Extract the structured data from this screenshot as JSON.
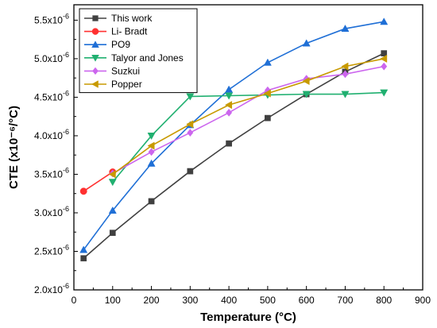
{
  "chart_data": {
    "type": "line",
    "xlabel": "Temperature (°C)",
    "ylabel": "CTE (x10⁻⁶/°C)",
    "xlim": [
      0,
      900
    ],
    "ylim": [
      2.0,
      5.7
    ],
    "x_ticks": [
      0,
      100,
      200,
      300,
      400,
      500,
      600,
      700,
      800,
      900
    ],
    "y_ticks": [
      2.0,
      2.5,
      3.0,
      3.5,
      4.0,
      4.5,
      5.0,
      5.5
    ],
    "y_tick_labels": [
      {
        "base": "2.0x10",
        "exp": "-6"
      },
      {
        "base": "2.5x10",
        "exp": "-6"
      },
      {
        "base": "3.0x10",
        "exp": "-6"
      },
      {
        "base": "3.5x10",
        "exp": "-6"
      },
      {
        "base": "4.0x10",
        "exp": "-6"
      },
      {
        "base": "4.5x10",
        "exp": "-6"
      },
      {
        "base": "5.0x10",
        "exp": "-6"
      },
      {
        "base": "5.5x10",
        "exp": "-6"
      }
    ],
    "legend_position": "top-left",
    "series": [
      {
        "name": "This work",
        "color": "#404040",
        "marker": "square",
        "x": [
          25,
          100,
          200,
          300,
          400,
          500,
          600,
          700,
          800
        ],
        "y": [
          2.41,
          2.74,
          3.15,
          3.54,
          3.9,
          4.23,
          4.54,
          4.83,
          5.07
        ]
      },
      {
        "name": "Li- Bradt",
        "color": "#ff3030",
        "marker": "circle",
        "x": [
          25,
          100
        ],
        "y": [
          3.28,
          3.53
        ]
      },
      {
        "name": "PO9",
        "color": "#1f6fd6",
        "marker": "triangle-up",
        "x": [
          25,
          100,
          200,
          300,
          400,
          500,
          600,
          700,
          800
        ],
        "y": [
          2.52,
          3.03,
          3.64,
          4.14,
          4.6,
          4.95,
          5.2,
          5.39,
          5.48
        ]
      },
      {
        "name": "Talyor and Jones",
        "color": "#20b070",
        "marker": "triangle-down",
        "x": [
          100,
          200,
          300,
          400,
          500,
          600,
          700,
          800
        ],
        "y": [
          3.4,
          4.0,
          4.51,
          4.52,
          4.53,
          4.54,
          4.54,
          4.56
        ]
      },
      {
        "name": "Suzkui",
        "color": "#cc66ee",
        "marker": "diamond",
        "x": [
          100,
          200,
          300,
          400,
          500,
          600,
          700,
          800
        ],
        "y": [
          3.51,
          3.79,
          4.04,
          4.3,
          4.59,
          4.74,
          4.8,
          4.9
        ]
      },
      {
        "name": "Popper",
        "color": "#c89a00",
        "marker": "triangle-left",
        "x": [
          100,
          200,
          300,
          400,
          500,
          600,
          700,
          800
        ],
        "y": [
          3.5,
          3.87,
          4.15,
          4.4,
          4.55,
          4.71,
          4.9,
          5.0
        ]
      }
    ]
  }
}
